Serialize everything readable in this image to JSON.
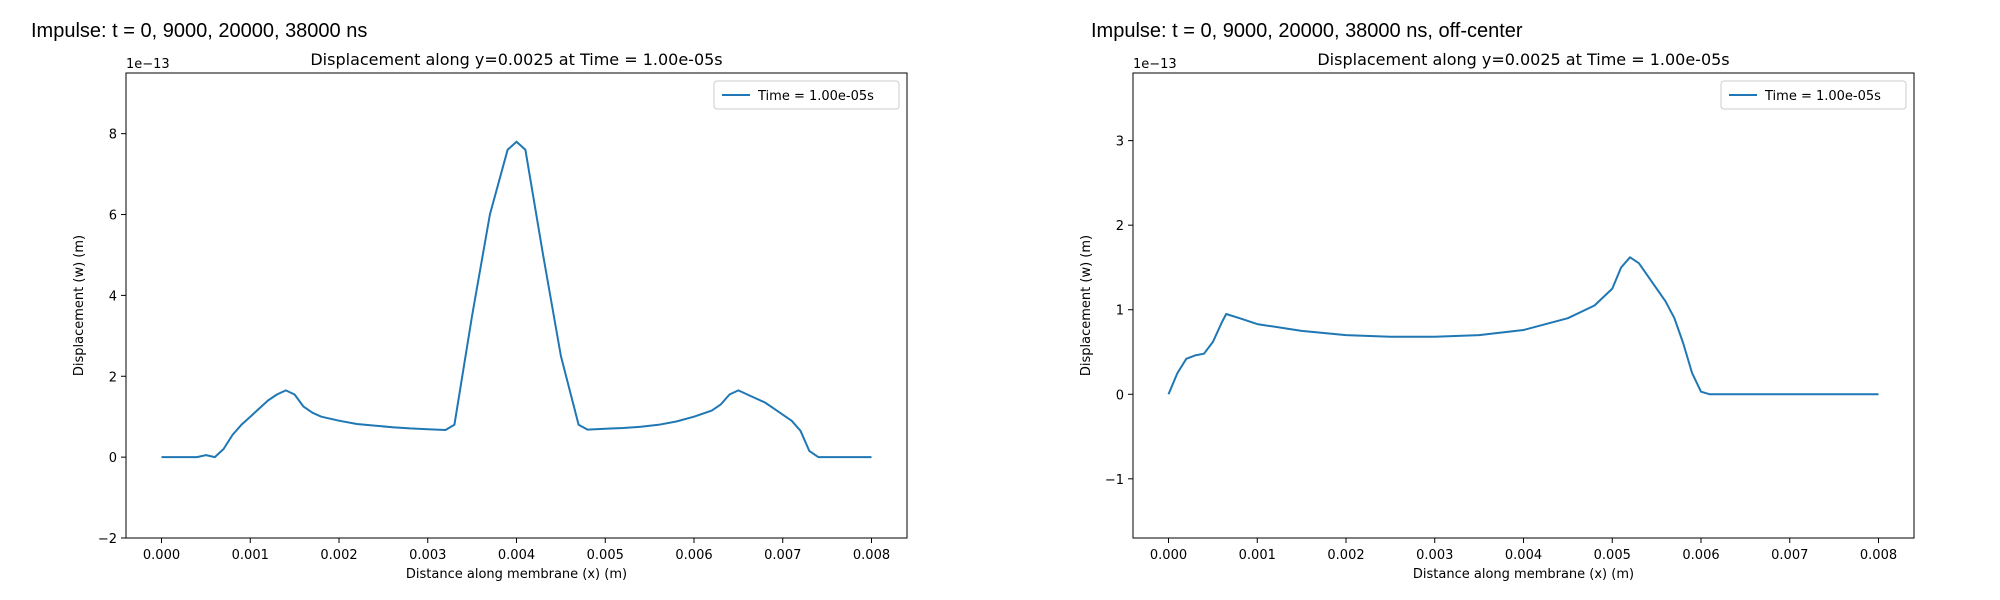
{
  "page_titles": [
    "Impulse: t = 0, 9000, 20000, 38000 ns",
    "Impulse: t = 0, 9000, 20000, 38000 ns, off-center"
  ],
  "chart_data": [
    {
      "type": "line",
      "title": "Displacement along y=0.0025 at Time = 1.00e-05s",
      "xlabel": "Distance along membrane (x) (m)",
      "ylabel": "Displacement (w) (m)",
      "offset_text": "1e−13",
      "xlim": [
        -0.0004,
        0.0084
      ],
      "ylim": [
        -2,
        9.5
      ],
      "xticks": [
        0.0,
        0.001,
        0.002,
        0.003,
        0.004,
        0.005,
        0.006,
        0.007,
        0.008
      ],
      "xtick_labels": [
        "0.000",
        "0.001",
        "0.002",
        "0.003",
        "0.004",
        "0.005",
        "0.006",
        "0.007",
        "0.008"
      ],
      "yticks": [
        -2,
        0,
        2,
        4,
        6,
        8
      ],
      "ytick_labels": [
        "−2",
        "0",
        "2",
        "4",
        "6",
        "8"
      ],
      "legend": "top-right",
      "grid": false,
      "series_color": "#1f77b4",
      "series": [
        {
          "name": "Time = 1.00e-05s",
          "x": [
            0.0,
            0.0002,
            0.0004,
            0.0005,
            0.0006,
            0.0007,
            0.0008,
            0.0009,
            0.001,
            0.0011,
            0.0012,
            0.0013,
            0.0014,
            0.0015,
            0.0016,
            0.0017,
            0.0018,
            0.002,
            0.0022,
            0.0024,
            0.0026,
            0.0028,
            0.003,
            0.0031,
            0.0032,
            0.0033,
            0.0035,
            0.0037,
            0.0039,
            0.004,
            0.0041,
            0.0043,
            0.0045,
            0.0047,
            0.0048,
            0.005,
            0.0052,
            0.0054,
            0.0056,
            0.0058,
            0.006,
            0.0062,
            0.0063,
            0.0064,
            0.0065,
            0.0066,
            0.0067,
            0.0068,
            0.0069,
            0.007,
            0.0071,
            0.0072,
            0.0073,
            0.0074,
            0.0075,
            0.0076,
            0.0078,
            0.008
          ],
          "values": [
            0.0,
            0.0,
            0.0,
            0.05,
            0.0,
            0.2,
            0.55,
            0.8,
            1.0,
            1.2,
            1.4,
            1.55,
            1.65,
            1.55,
            1.25,
            1.1,
            1.0,
            0.9,
            0.82,
            0.78,
            0.74,
            0.71,
            0.69,
            0.68,
            0.67,
            0.8,
            3.5,
            6.0,
            7.6,
            7.8,
            7.6,
            5.0,
            2.5,
            0.8,
            0.68,
            0.7,
            0.72,
            0.75,
            0.8,
            0.88,
            1.0,
            1.15,
            1.3,
            1.55,
            1.65,
            1.55,
            1.45,
            1.35,
            1.2,
            1.05,
            0.9,
            0.65,
            0.15,
            0.0,
            0.0,
            0.0,
            0.0,
            0.0
          ]
        }
      ]
    },
    {
      "type": "line",
      "title": "Displacement along y=0.0025 at Time = 1.00e-05s",
      "xlabel": "Distance along membrane (x) (m)",
      "ylabel": "Displacement (w) (m)",
      "offset_text": "1e−13",
      "xlim": [
        -0.0004,
        0.0084
      ],
      "ylim": [
        -1.7,
        3.8
      ],
      "xticks": [
        0.0,
        0.001,
        0.002,
        0.003,
        0.004,
        0.005,
        0.006,
        0.007,
        0.008
      ],
      "xtick_labels": [
        "0.000",
        "0.001",
        "0.002",
        "0.003",
        "0.004",
        "0.005",
        "0.006",
        "0.007",
        "0.008"
      ],
      "yticks": [
        -1,
        0,
        1,
        2,
        3
      ],
      "ytick_labels": [
        "−1",
        "0",
        "1",
        "2",
        "3"
      ],
      "legend": "top-right",
      "grid": false,
      "series_color": "#1f77b4",
      "series": [
        {
          "name": "Time = 1.00e-05s",
          "x": [
            0.0,
            0.0001,
            0.0002,
            0.0003,
            0.0004,
            0.0005,
            0.0006,
            0.00065,
            0.0008,
            0.001,
            0.0015,
            0.002,
            0.0025,
            0.003,
            0.0035,
            0.004,
            0.0045,
            0.0048,
            0.005,
            0.0051,
            0.0052,
            0.0053,
            0.0055,
            0.0056,
            0.0057,
            0.0058,
            0.0059,
            0.006,
            0.0061,
            0.0065,
            0.007,
            0.0075,
            0.008
          ],
          "values": [
            0.0,
            0.25,
            0.42,
            0.46,
            0.48,
            0.62,
            0.85,
            0.95,
            0.9,
            0.83,
            0.75,
            0.7,
            0.68,
            0.68,
            0.7,
            0.76,
            0.9,
            1.05,
            1.25,
            1.5,
            1.62,
            1.55,
            1.25,
            1.1,
            0.9,
            0.6,
            0.25,
            0.03,
            0.0,
            0.0,
            0.0,
            0.0,
            0.0
          ]
        }
      ]
    }
  ]
}
